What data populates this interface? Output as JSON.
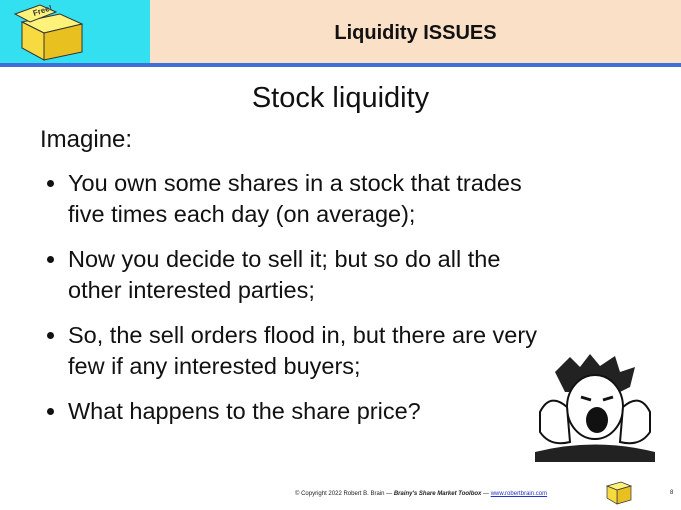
{
  "header": {
    "logo_text": "Free!",
    "title": "Liquidity ISSUES"
  },
  "slide": {
    "title": "Stock liquidity",
    "intro": "Imagine:",
    "bullets": [
      "You own some shares in a stock that trades five times each day (on average);",
      "Now you decide to sell it; but so do all the other interested parties;",
      "So, the sell orders flood in, but there are very few if any interested buyers;",
      "What happens to the share price?"
    ]
  },
  "footer": {
    "copyright": "© Copyright 2022 Robert B. Brain —",
    "toolbox": "Brainy's Share Market Toolbox",
    "separator": "—",
    "url": "www.robertbrain.com",
    "page": "8"
  }
}
